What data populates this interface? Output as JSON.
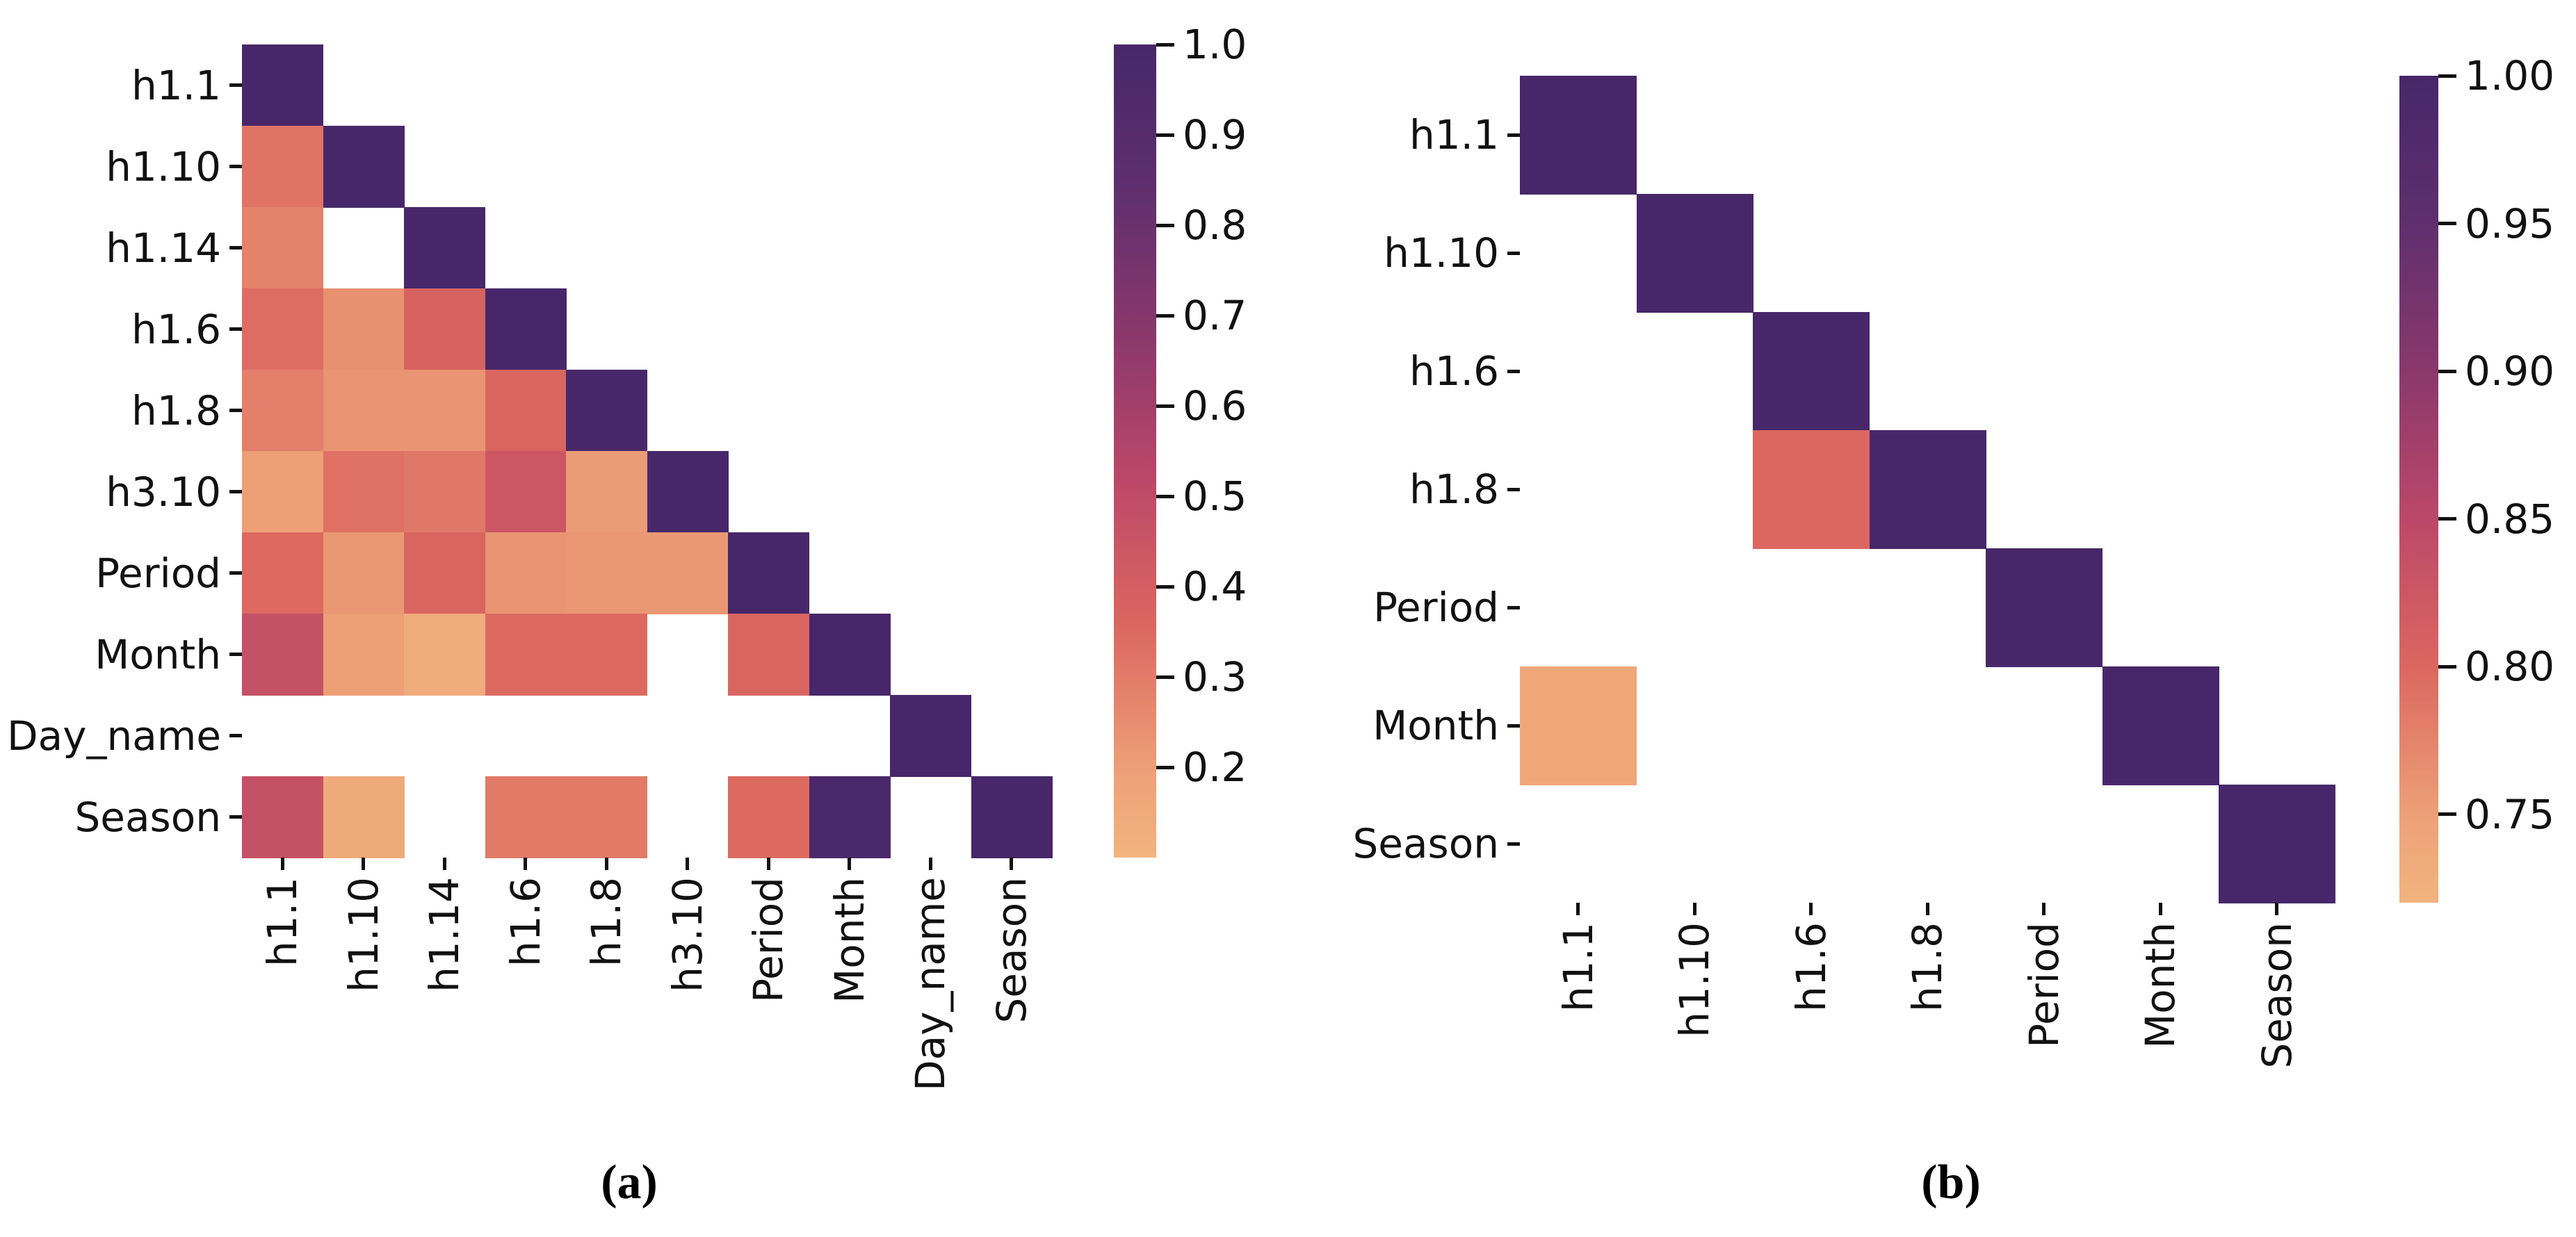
{
  "figure": {
    "background": "#ffffff",
    "text_color": "#111111",
    "missing_color": "#ffffff"
  },
  "colormap": {
    "name": "flare-like-sequential",
    "stops": [
      [
        0.0,
        "#f2b47f"
      ],
      [
        0.107,
        "#eda077"
      ],
      [
        0.286,
        "#db6760"
      ],
      [
        0.464,
        "#bc4869"
      ],
      [
        0.643,
        "#8a386c"
      ],
      [
        0.821,
        "#5f2f6e"
      ],
      [
        1.0,
        "#472769"
      ]
    ]
  },
  "chart_data": [
    {
      "type": "heatmap",
      "panel_label": "(a)",
      "layout_hint": "lower-triangular correlation matrix, masked upper triangle, colorbar right",
      "categories": [
        "h1.1",
        "h1.10",
        "h1.14",
        "h1.6",
        "h1.8",
        "h3.10",
        "Period",
        "Month",
        "Day_name",
        "Season"
      ],
      "matrix": [
        [
          1.0,
          null,
          null,
          null,
          null,
          null,
          null,
          null,
          null,
          null
        ],
        [
          0.32,
          1.0,
          null,
          null,
          null,
          null,
          null,
          null,
          null,
          null
        ],
        [
          0.28,
          null,
          1.0,
          null,
          null,
          null,
          null,
          null,
          null,
          null
        ],
        [
          0.34,
          0.24,
          0.38,
          1.0,
          null,
          null,
          null,
          null,
          null,
          null
        ],
        [
          0.29,
          0.23,
          0.23,
          0.37,
          1.0,
          null,
          null,
          null,
          null,
          null
        ],
        [
          0.2,
          0.33,
          0.31,
          0.44,
          0.21,
          1.0,
          null,
          null,
          null,
          null
        ],
        [
          0.35,
          0.22,
          0.37,
          0.23,
          0.22,
          0.22,
          1.0,
          null,
          null,
          null
        ],
        [
          0.47,
          0.2,
          0.14,
          0.35,
          0.35,
          null,
          0.37,
          1.0,
          null,
          null
        ],
        [
          null,
          null,
          null,
          null,
          null,
          null,
          null,
          null,
          1.0,
          null
        ],
        [
          0.47,
          0.15,
          null,
          0.3,
          0.3,
          null,
          0.35,
          0.97,
          null,
          1.0
        ]
      ],
      "colorbar": {
        "vmin": 0.1,
        "vmax": 1.0,
        "tick_values": [
          1.0,
          0.9,
          0.8,
          0.7,
          0.6,
          0.5,
          0.4,
          0.3,
          0.2
        ],
        "tick_labels": [
          "1.0",
          "0.9",
          "0.8",
          "0.7",
          "0.6",
          "0.5",
          "0.4",
          "0.3",
          "0.2"
        ]
      }
    },
    {
      "type": "heatmap",
      "panel_label": "(b)",
      "layout_hint": "sparse lower-triangular correlation matrix, colorbar right",
      "categories": [
        "h1.1",
        "h1.10",
        "h1.6",
        "h1.8",
        "Period",
        "Month",
        "Season"
      ],
      "matrix": [
        [
          1.0,
          null,
          null,
          null,
          null,
          null,
          null
        ],
        [
          null,
          1.0,
          null,
          null,
          null,
          null,
          null
        ],
        [
          null,
          null,
          1.0,
          null,
          null,
          null,
          null
        ],
        [
          null,
          null,
          0.8,
          1.0,
          null,
          null,
          null
        ],
        [
          null,
          null,
          null,
          null,
          1.0,
          null,
          null
        ],
        [
          0.74,
          null,
          null,
          null,
          null,
          1.0,
          null
        ],
        [
          null,
          null,
          null,
          null,
          null,
          null,
          1.0
        ]
      ],
      "colorbar": {
        "vmin": 0.72,
        "vmax": 1.0,
        "tick_values": [
          1.0,
          0.95,
          0.9,
          0.85,
          0.8,
          0.75
        ],
        "tick_labels": [
          "1.00",
          "0.95",
          "0.90",
          "0.85",
          "0.80",
          "0.75"
        ]
      }
    }
  ]
}
